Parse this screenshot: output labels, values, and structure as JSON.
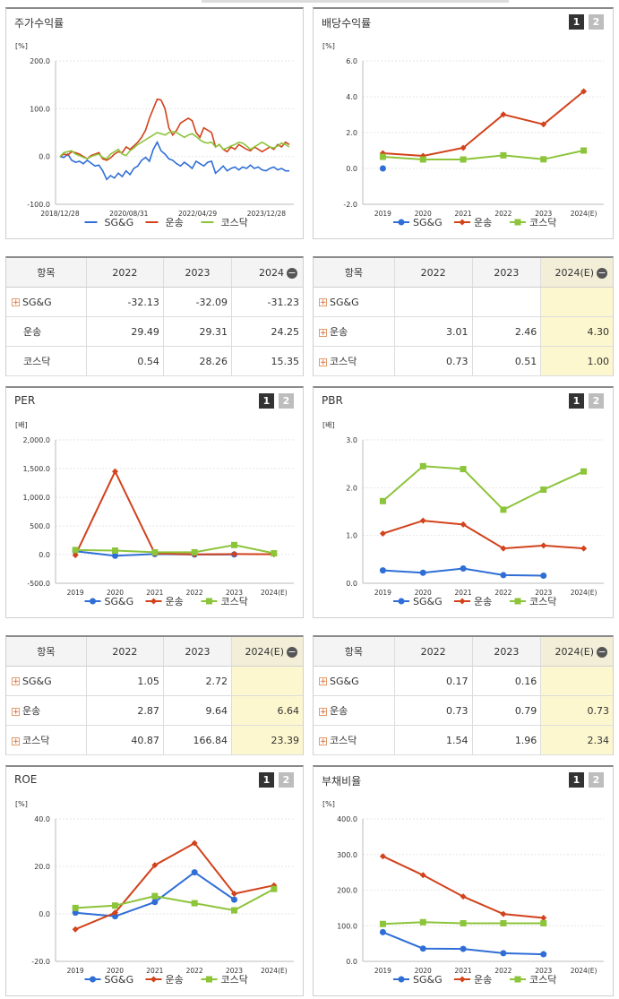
{
  "buttons": [
    "1",
    "2"
  ],
  "legend_names": [
    "SG&G",
    "운송",
    "코스닥"
  ],
  "colors": {
    "sgg": "#2f6ed6",
    "trans": "#d2421b",
    "kosdaq": "#8cc43a"
  },
  "panels": [
    {
      "id": "stock",
      "title": "주가수익률",
      "unit": "[%]",
      "show_buttons": false
    },
    {
      "id": "div",
      "title": "배당수익률",
      "unit": "[%]",
      "show_buttons": true
    },
    {
      "id": "per",
      "title": "PER",
      "unit": "[배]",
      "show_buttons": true
    },
    {
      "id": "pbr",
      "title": "PBR",
      "unit": "[배]",
      "show_buttons": true
    },
    {
      "id": "roe",
      "title": "ROE",
      "unit": "[%]",
      "show_buttons": true
    },
    {
      "id": "debt",
      "title": "부채비율",
      "unit": "[%]",
      "show_buttons": true
    }
  ],
  "chart_data": [
    {
      "id": "stock",
      "type": "line",
      "title": "주가수익률",
      "ylabel": "[%]",
      "ylim": [
        -100,
        200
      ],
      "yticks": [
        "200.0",
        "100.0",
        "0.0",
        "-100.0"
      ],
      "xticks": [
        "2018/12/28",
        "2020/08/31",
        "2022/04/29",
        "2023/12/28"
      ],
      "series": [
        {
          "name": "SG&G",
          "values": [
            0,
            -2,
            5,
            -8,
            -12,
            -10,
            -15,
            -8,
            -14,
            -20,
            -18,
            -30,
            -48,
            -40,
            -45,
            -35,
            -42,
            -30,
            -38,
            -25,
            -20,
            -8,
            -2,
            -10,
            15,
            30,
            12,
            5,
            -5,
            -8,
            -15,
            -20,
            -12,
            -18,
            -25,
            -10,
            -15,
            -20,
            -12,
            -10,
            -35,
            -28,
            -20,
            -30,
            -25,
            -22,
            -28,
            -22,
            -25,
            -18,
            -25,
            -22,
            -28,
            -30,
            -25,
            -22,
            -28,
            -25,
            -30,
            -30
          ]
        },
        {
          "name": "운송",
          "values": [
            0,
            5,
            3,
            10,
            8,
            5,
            0,
            -5,
            2,
            5,
            8,
            -5,
            -8,
            -3,
            5,
            10,
            8,
            20,
            15,
            22,
            30,
            40,
            55,
            80,
            100,
            120,
            118,
            100,
            60,
            45,
            55,
            70,
            75,
            80,
            75,
            50,
            40,
            60,
            55,
            50,
            20,
            25,
            15,
            10,
            20,
            15,
            25,
            20,
            15,
            12,
            20,
            15,
            10,
            15,
            20,
            15,
            25,
            20,
            30,
            25
          ]
        },
        {
          "name": "코스닥",
          "values": [
            0,
            8,
            10,
            12,
            5,
            2,
            -2,
            -5,
            0,
            3,
            5,
            -2,
            -5,
            5,
            10,
            15,
            5,
            2,
            12,
            18,
            25,
            30,
            35,
            40,
            45,
            50,
            48,
            45,
            50,
            52,
            50,
            45,
            40,
            45,
            48,
            42,
            35,
            30,
            28,
            30,
            20,
            25,
            15,
            18,
            22,
            25,
            30,
            28,
            22,
            15,
            20,
            25,
            30,
            25,
            20,
            18,
            22,
            28,
            25,
            20
          ]
        }
      ]
    },
    {
      "id": "div",
      "type": "line",
      "title": "배당수익률",
      "ylabel": "[%]",
      "ylim": [
        -2,
        6
      ],
      "yticks": [
        "6.0",
        "4.0",
        "2.0",
        "0.0",
        "-2.0"
      ],
      "categories": [
        "2019",
        "2020",
        "2021",
        "2022",
        "2023",
        "2024(E)"
      ],
      "series": [
        {
          "name": "SG&G",
          "values": [
            0.0,
            null,
            null,
            null,
            null,
            null
          ]
        },
        {
          "name": "운송",
          "values": [
            0.85,
            0.7,
            1.15,
            3.01,
            2.46,
            4.3
          ]
        },
        {
          "name": "코스닥",
          "values": [
            0.65,
            0.5,
            0.5,
            0.73,
            0.51,
            1.0
          ]
        }
      ]
    },
    {
      "id": "per",
      "type": "line",
      "title": "PER",
      "ylabel": "[배]",
      "ylim": [
        -500,
        2000
      ],
      "yticks": [
        "2,000.0",
        "1,500.0",
        "1,000.0",
        "500.0",
        "0.0",
        "-500.0"
      ],
      "categories": [
        "2019",
        "2020",
        "2021",
        "2022",
        "2023",
        "2024(E)"
      ],
      "series": [
        {
          "name": "SG&G",
          "values": [
            60,
            -20,
            10,
            1.05,
            2.72,
            null
          ]
        },
        {
          "name": "운송",
          "values": [
            -10,
            1450,
            20,
            2.87,
            9.64,
            6.64
          ]
        },
        {
          "name": "코스닥",
          "values": [
            80,
            70,
            40,
            40.87,
            166.84,
            23.39
          ]
        }
      ]
    },
    {
      "id": "pbr",
      "type": "line",
      "title": "PBR",
      "ylabel": "[배]",
      "ylim": [
        0,
        3
      ],
      "yticks": [
        "3.0",
        "2.0",
        "1.0",
        "0.0"
      ],
      "categories": [
        "2019",
        "2020",
        "2021",
        "2022",
        "2023",
        "2024(E)"
      ],
      "series": [
        {
          "name": "SG&G",
          "values": [
            0.27,
            0.22,
            0.31,
            0.17,
            0.16,
            null
          ]
        },
        {
          "name": "운송",
          "values": [
            1.04,
            1.31,
            1.23,
            0.73,
            0.79,
            0.73
          ]
        },
        {
          "name": "코스닥",
          "values": [
            1.72,
            2.45,
            2.39,
            1.54,
            1.96,
            2.34
          ]
        }
      ]
    },
    {
      "id": "roe",
      "type": "line",
      "title": "ROE",
      "ylabel": "[%]",
      "ylim": [
        -20,
        40
      ],
      "yticks": [
        "40.0",
        "20.0",
        "0.0",
        "-20.0"
      ],
      "categories": [
        "2019",
        "2020",
        "2021",
        "2022",
        "2023",
        "2024(E)"
      ],
      "series": [
        {
          "name": "SG&G",
          "values": [
            0.5,
            -1.0,
            5.0,
            17.5,
            6.0,
            null
          ]
        },
        {
          "name": "운송",
          "values": [
            -6.5,
            0.5,
            20.5,
            29.8,
            8.5,
            12.0
          ]
        },
        {
          "name": "코스닥",
          "values": [
            2.5,
            3.5,
            7.5,
            4.5,
            1.5,
            10.5
          ]
        }
      ]
    },
    {
      "id": "debt",
      "type": "line",
      "title": "부채비율",
      "ylabel": "[%]",
      "ylim": [
        0,
        400
      ],
      "yticks": [
        "400.0",
        "300.0",
        "200.0",
        "100.0",
        "0.0"
      ],
      "categories": [
        "2019",
        "2020",
        "2021",
        "2022",
        "2023",
        "2024(E)"
      ],
      "series": [
        {
          "name": "SG&G",
          "values": [
            82,
            36,
            35,
            23,
            20,
            null
          ]
        },
        {
          "name": "운송",
          "values": [
            295,
            242,
            182,
            133,
            122,
            null
          ]
        },
        {
          "name": "코스닥",
          "values": [
            105,
            110,
            107,
            107,
            107,
            null
          ]
        }
      ]
    }
  ],
  "tables": [
    {
      "id": "stock",
      "headers": [
        "항목",
        "2022",
        "2023",
        "2024"
      ],
      "minus_on_last": true,
      "rows": [
        {
          "name": "SG&G",
          "plus": true,
          "cells": [
            "-32.13",
            "-32.09",
            "-31.23"
          ]
        },
        {
          "name": "운송",
          "plus": false,
          "cells": [
            "29.49",
            "29.31",
            "24.25"
          ]
        },
        {
          "name": "코스닥",
          "plus": false,
          "cells": [
            "0.54",
            "28.26",
            "15.35"
          ]
        }
      ],
      "highlight_last": false
    },
    {
      "id": "div",
      "headers": [
        "항목",
        "2022",
        "2023",
        "2024(E)"
      ],
      "minus_on_last": true,
      "rows": [
        {
          "name": "SG&G",
          "plus": true,
          "cells": [
            "",
            "",
            ""
          ]
        },
        {
          "name": "운송",
          "plus": true,
          "cells": [
            "3.01",
            "2.46",
            "4.30"
          ]
        },
        {
          "name": "코스닥",
          "plus": true,
          "cells": [
            "0.73",
            "0.51",
            "1.00"
          ]
        }
      ],
      "highlight_last": true
    },
    {
      "id": "per",
      "headers": [
        "항목",
        "2022",
        "2023",
        "2024(E)"
      ],
      "minus_on_last": true,
      "rows": [
        {
          "name": "SG&G",
          "plus": true,
          "cells": [
            "1.05",
            "2.72",
            ""
          ]
        },
        {
          "name": "운송",
          "plus": true,
          "cells": [
            "2.87",
            "9.64",
            "6.64"
          ]
        },
        {
          "name": "코스닥",
          "plus": true,
          "cells": [
            "40.87",
            "166.84",
            "23.39"
          ]
        }
      ],
      "highlight_last": true
    },
    {
      "id": "pbr",
      "headers": [
        "항목",
        "2022",
        "2023",
        "2024(E)"
      ],
      "minus_on_last": true,
      "rows": [
        {
          "name": "SG&G",
          "plus": true,
          "cells": [
            "0.17",
            "0.16",
            ""
          ]
        },
        {
          "name": "운송",
          "plus": true,
          "cells": [
            "0.73",
            "0.79",
            "0.73"
          ]
        },
        {
          "name": "코스닥",
          "plus": true,
          "cells": [
            "1.54",
            "1.96",
            "2.34"
          ]
        }
      ],
      "highlight_last": true
    }
  ]
}
